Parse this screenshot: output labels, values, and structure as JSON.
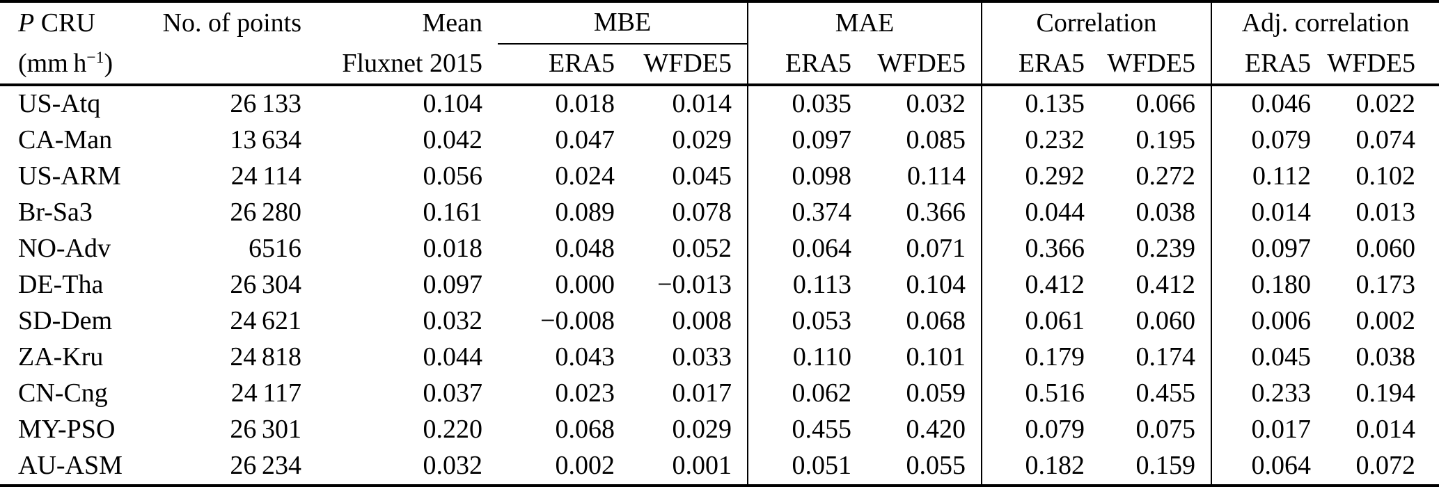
{
  "page": {
    "background_color": "#ffffff",
    "text_color": "#000000",
    "rule_color": "#000000"
  },
  "table": {
    "header": {
      "row1": {
        "col1_var": "P",
        "col1_rest": " CRU",
        "col2": "No. of points",
        "col3": "Mean",
        "groups": [
          "MBE",
          "MAE",
          "Correlation",
          "Adj. correlation"
        ]
      },
      "row2": {
        "col1_prefix": "(mm h",
        "col1_sup": "−1",
        "col1_suffix": ")",
        "col3": "Fluxnet 2015",
        "subcols": [
          "ERA5",
          "WFDE5",
          "ERA5",
          "WFDE5",
          "ERA5",
          "WFDE5",
          "ERA5",
          "WFDE5"
        ]
      }
    },
    "rows": [
      {
        "cells": [
          "US-Atq",
          "26 133",
          "0.104",
          "0.018",
          "0.014",
          "0.035",
          "0.032",
          "0.135",
          "0.066",
          "0.046",
          "0.022"
        ]
      },
      {
        "cells": [
          "CA-Man",
          "13 634",
          "0.042",
          "0.047",
          "0.029",
          "0.097",
          "0.085",
          "0.232",
          "0.195",
          "0.079",
          "0.074"
        ]
      },
      {
        "cells": [
          "US-ARM",
          "24 114",
          "0.056",
          "0.024",
          "0.045",
          "0.098",
          "0.114",
          "0.292",
          "0.272",
          "0.112",
          "0.102"
        ]
      },
      {
        "cells": [
          "Br-Sa3",
          "26 280",
          "0.161",
          "0.089",
          "0.078",
          "0.374",
          "0.366",
          "0.044",
          "0.038",
          "0.014",
          "0.013"
        ]
      },
      {
        "cells": [
          "NO-Adv",
          "6516",
          "0.018",
          "0.048",
          "0.052",
          "0.064",
          "0.071",
          "0.366",
          "0.239",
          "0.097",
          "0.060"
        ]
      },
      {
        "cells": [
          "DE-Tha",
          "26 304",
          "0.097",
          "0.000",
          "−0.013",
          "0.113",
          "0.104",
          "0.412",
          "0.412",
          "0.180",
          "0.173"
        ]
      },
      {
        "cells": [
          "SD-Dem",
          "24 621",
          "0.032",
          "−0.008",
          "0.008",
          "0.053",
          "0.068",
          "0.061",
          "0.060",
          "0.006",
          "0.002"
        ]
      },
      {
        "cells": [
          "ZA-Kru",
          "24 818",
          "0.044",
          "0.043",
          "0.033",
          "0.110",
          "0.101",
          "0.179",
          "0.174",
          "0.045",
          "0.038"
        ]
      },
      {
        "cells": [
          "CN-Cng",
          "24 117",
          "0.037",
          "0.023",
          "0.017",
          "0.062",
          "0.059",
          "0.516",
          "0.455",
          "0.233",
          "0.194"
        ]
      },
      {
        "cells": [
          "MY-PSO",
          "26 301",
          "0.220",
          "0.068",
          "0.029",
          "0.455",
          "0.420",
          "0.079",
          "0.075",
          "0.017",
          "0.014"
        ]
      },
      {
        "cells": [
          "AU-ASM",
          "26 234",
          "0.032",
          "0.002",
          "0.001",
          "0.051",
          "0.055",
          "0.182",
          "0.159",
          "0.064",
          "0.072"
        ]
      }
    ]
  }
}
